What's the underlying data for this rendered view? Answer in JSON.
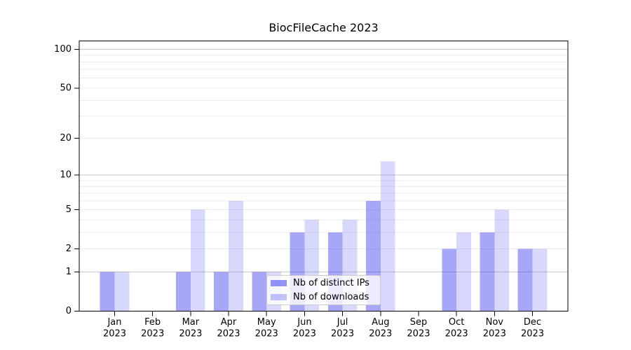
{
  "chart_data": {
    "type": "bar",
    "title": "BiocFileCache 2023",
    "categories": [
      "Jan",
      "Feb",
      "Mar",
      "Apr",
      "May",
      "Jun",
      "Jul",
      "Aug",
      "Sep",
      "Oct",
      "Nov",
      "Dec"
    ],
    "category_year": "2023",
    "series": [
      {
        "name": "Nb of distinct IPs",
        "color": "#3c3cef",
        "fill_opacity": 0.45,
        "values": [
          1,
          0,
          1,
          1,
          1,
          3,
          3,
          6,
          0,
          2,
          3,
          2
        ]
      },
      {
        "name": "Nb of downloads",
        "color": "#3c3cef",
        "fill_opacity": 0.2,
        "values": [
          1,
          0,
          5,
          6,
          1,
          4,
          4,
          13,
          0,
          3,
          5,
          2
        ]
      }
    ],
    "y_scale": "log1p",
    "ylim": [
      0,
      116
    ],
    "y_ticks": [
      0,
      1,
      2,
      5,
      10,
      20,
      50,
      100
    ],
    "major_gridlines": [
      1,
      10,
      100
    ],
    "minor_gridlines": [
      2,
      3,
      4,
      5,
      6,
      7,
      8,
      9,
      20,
      30,
      40,
      50,
      60,
      70,
      80,
      90
    ],
    "grid": true,
    "legend_position": "lower center",
    "xlabel": "",
    "ylabel": "",
    "colors": {
      "major_grid": "#c9c9c9",
      "minor_grid": "#ededed",
      "axis": "#000000",
      "text": "#000000",
      "legend_border": "#cccccc"
    }
  }
}
